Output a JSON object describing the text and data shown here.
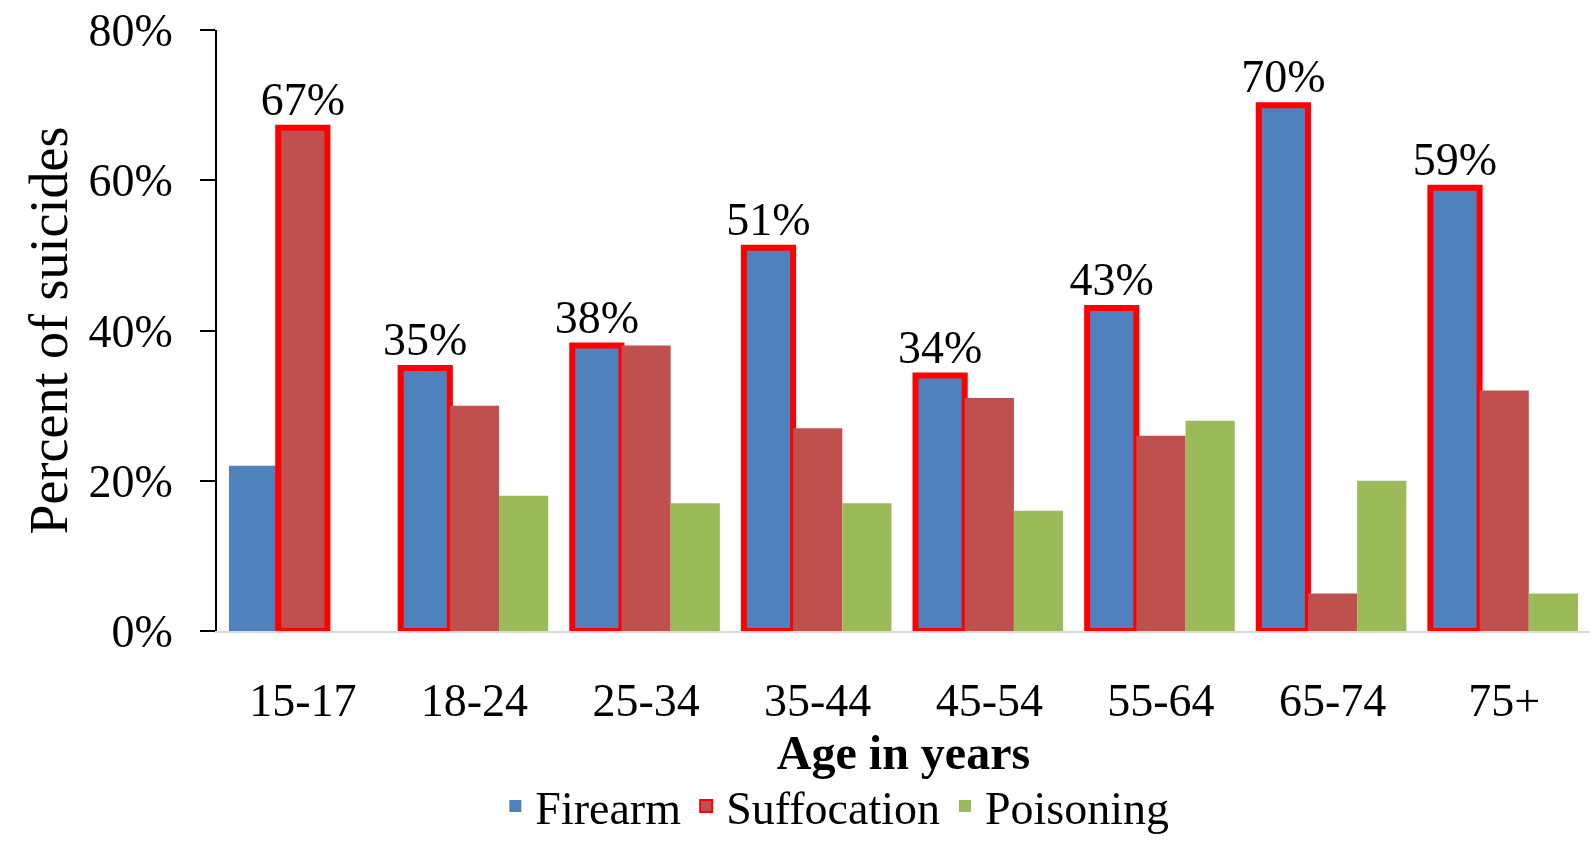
{
  "chart_data": {
    "type": "bar",
    "xlabel": "Age in years",
    "ylabel": "Percent of suicides",
    "categories": [
      "15-17",
      "18-24",
      "25-34",
      "35-44",
      "45-54",
      "55-64",
      "65-74",
      "75+"
    ],
    "series": [
      {
        "name": "Firearm",
        "color": "#4f81bd",
        "values": [
          22,
          35,
          38,
          51,
          34,
          43,
          70,
          59
        ],
        "value_labels": [
          null,
          "35%",
          "38%",
          "51%",
          "34%",
          "43%",
          "70%",
          "59%"
        ]
      },
      {
        "name": "Suffocation",
        "color": "#c0504d",
        "values": [
          67,
          30,
          38,
          27,
          31,
          26,
          5,
          32
        ],
        "value_labels": [
          "67%",
          null,
          null,
          null,
          null,
          null,
          null,
          null
        ]
      },
      {
        "name": "Poisoning",
        "color": "#9bbb59",
        "values": [
          null,
          18,
          17,
          17,
          16,
          28,
          20,
          5
        ]
      }
    ],
    "ylim": [
      0,
      80
    ],
    "yticks": [
      {
        "value": 0,
        "label": "0%"
      },
      {
        "value": 20,
        "label": "20%"
      },
      {
        "value": 40,
        "label": "40%"
      },
      {
        "value": 60,
        "label": "60%"
      },
      {
        "value": 80,
        "label": "80%"
      }
    ],
    "grid": false,
    "legend": "bottom"
  }
}
